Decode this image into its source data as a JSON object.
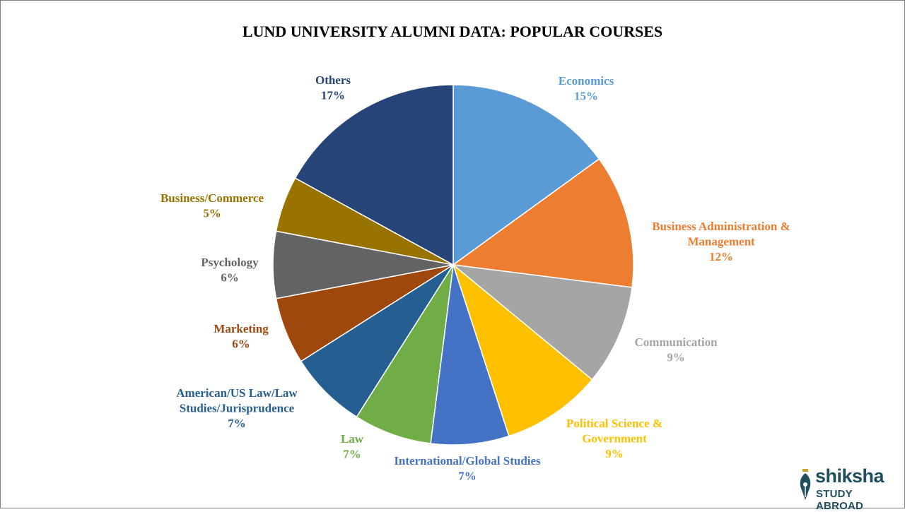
{
  "chart_data": {
    "type": "pie",
    "title": "LUND UNIVERSITY ALUMNI DATA:  POPULAR COURSES",
    "slices": [
      {
        "label": [
          "Economics"
        ],
        "value": 15,
        "value_label": "15%",
        "color": "#5b9bd5"
      },
      {
        "label": [
          "Business Administration &",
          "Management"
        ],
        "value": 12,
        "value_label": "12%",
        "color": "#ed7d31"
      },
      {
        "label": [
          "Communication"
        ],
        "value": 9,
        "value_label": "9%",
        "color": "#a5a5a5"
      },
      {
        "label": [
          "Political Science &",
          "Government"
        ],
        "value": 9,
        "value_label": "9%",
        "color": "#ffc000"
      },
      {
        "label": [
          "International/Global Studies"
        ],
        "value": 7,
        "value_label": "7%",
        "color": "#4472c4"
      },
      {
        "label": [
          "Law"
        ],
        "value": 7,
        "value_label": "7%",
        "color": "#70ad47"
      },
      {
        "label": [
          "American/US Law/Law",
          "Studies/Jurisprudence"
        ],
        "value": 7,
        "value_label": "7%",
        "color": "#255e91"
      },
      {
        "label": [
          "Marketing"
        ],
        "value": 6,
        "value_label": "6%",
        "color": "#9e480e"
      },
      {
        "label": [
          "Psychology"
        ],
        "value": 6,
        "value_label": "6%",
        "color": "#636363"
      },
      {
        "label": [
          "Business/Commerce"
        ],
        "value": 5,
        "value_label": "5%",
        "color": "#997300"
      },
      {
        "label": [
          "Others"
        ],
        "value": 17,
        "value_label": "17%",
        "color": "#264478"
      }
    ],
    "legend": "none",
    "start": "top, clockwise"
  },
  "brand": {
    "name": "shiksha",
    "subtitle": "STUDY ABROAD",
    "color": "#1f4e5f"
  }
}
